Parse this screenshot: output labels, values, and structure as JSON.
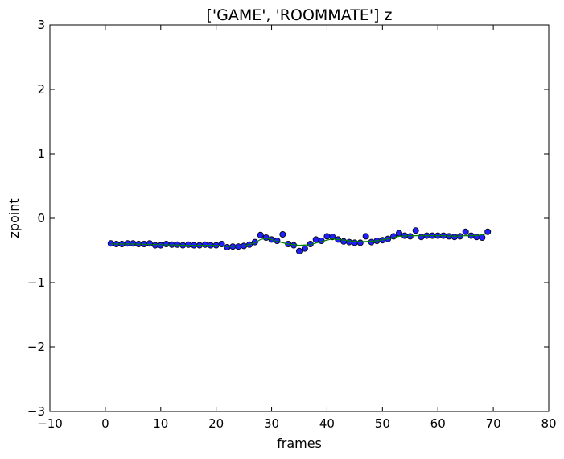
{
  "chart_data": {
    "type": "scatter",
    "title": "['GAME', 'ROOMMATE'] z",
    "xlabel": "frames",
    "ylabel": "zpoint",
    "xlim": [
      -10,
      80
    ],
    "ylim": [
      -3,
      3
    ],
    "xticks": [
      -10,
      0,
      10,
      20,
      30,
      40,
      50,
      60,
      70,
      80
    ],
    "yticks": [
      -3,
      -2,
      -1,
      0,
      1,
      2,
      3
    ],
    "xtick_labels": [
      "−10",
      "0",
      "10",
      "20",
      "30",
      "40",
      "50",
      "60",
      "70",
      "80"
    ],
    "ytick_labels": [
      "−3",
      "−2",
      "−1",
      "0",
      "1",
      "2",
      "3"
    ],
    "grid": false,
    "series": [
      {
        "kind": "scatter",
        "color": "#2020ff",
        "x": [
          1,
          2,
          3,
          4,
          5,
          6,
          7,
          8,
          9,
          10,
          11,
          12,
          13,
          14,
          15,
          16,
          17,
          18,
          19,
          20,
          21,
          22,
          23,
          24,
          25,
          26,
          27,
          28,
          29,
          30,
          31,
          32,
          33,
          34,
          35,
          36,
          37,
          38,
          39,
          40,
          41,
          42,
          43,
          44,
          45,
          46,
          47,
          48,
          49,
          50,
          51,
          52,
          53,
          54,
          55,
          56,
          57,
          58,
          59,
          60,
          61,
          62,
          63,
          64,
          65,
          66,
          67,
          68,
          69
        ],
        "y": [
          -0.39,
          -0.4,
          -0.4,
          -0.39,
          -0.39,
          -0.4,
          -0.4,
          -0.39,
          -0.42,
          -0.42,
          -0.4,
          -0.41,
          -0.41,
          -0.42,
          -0.41,
          -0.42,
          -0.42,
          -0.41,
          -0.42,
          -0.42,
          -0.4,
          -0.45,
          -0.44,
          -0.44,
          -0.43,
          -0.41,
          -0.37,
          -0.26,
          -0.3,
          -0.33,
          -0.35,
          -0.25,
          -0.4,
          -0.42,
          -0.51,
          -0.47,
          -0.4,
          -0.33,
          -0.35,
          -0.28,
          -0.29,
          -0.33,
          -0.36,
          -0.37,
          -0.38,
          -0.38,
          -0.28,
          -0.37,
          -0.35,
          -0.34,
          -0.32,
          -0.28,
          -0.23,
          -0.27,
          -0.28,
          -0.19,
          -0.29,
          -0.27,
          -0.27,
          -0.27,
          -0.27,
          -0.28,
          -0.29,
          -0.28,
          -0.21,
          -0.27,
          -0.29,
          -0.3,
          -0.21
        ]
      },
      {
        "kind": "line",
        "color": "#008000",
        "x": [
          1,
          5,
          10,
          15,
          20,
          22,
          25,
          27,
          28,
          29,
          30,
          31,
          33,
          35,
          37,
          39,
          41,
          43,
          45,
          47,
          49,
          51,
          53,
          55,
          57,
          59,
          61,
          63,
          65,
          67,
          69
        ],
        "y": [
          -0.4,
          -0.4,
          -0.41,
          -0.42,
          -0.42,
          -0.44,
          -0.43,
          -0.38,
          -0.33,
          -0.31,
          -0.33,
          -0.36,
          -0.4,
          -0.42,
          -0.41,
          -0.36,
          -0.32,
          -0.34,
          -0.36,
          -0.36,
          -0.35,
          -0.32,
          -0.28,
          -0.27,
          -0.27,
          -0.27,
          -0.27,
          -0.28,
          -0.27,
          -0.27,
          -0.24
        ]
      }
    ]
  }
}
